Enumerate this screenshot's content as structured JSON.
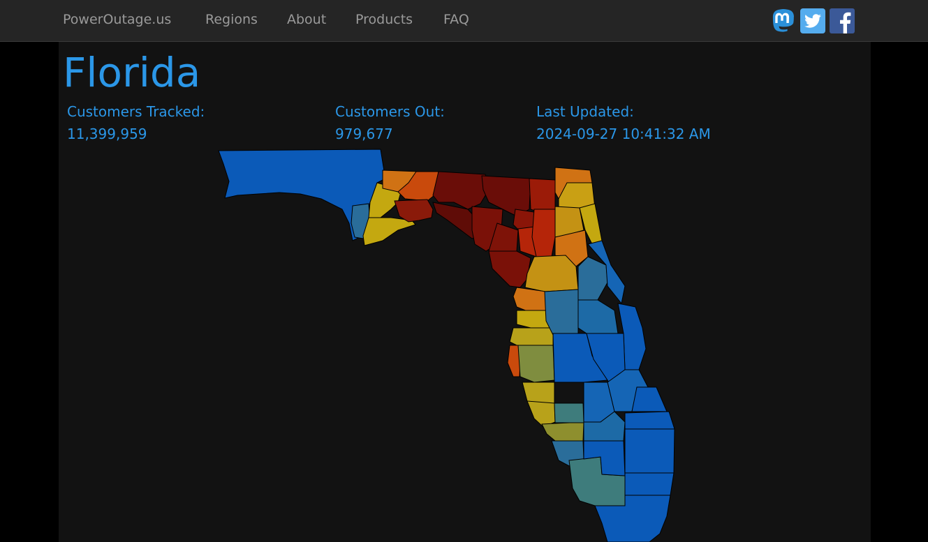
{
  "nav": {
    "brand": "PowerOutage.us",
    "links": [
      "Regions",
      "About",
      "Products",
      "FAQ"
    ]
  },
  "social": {
    "icons": [
      "mastodon-icon",
      "twitter-icon",
      "facebook-icon"
    ],
    "colors": {
      "mastodon": "#2b90d9",
      "twitter": "#55acee",
      "facebook": "#3b5998"
    }
  },
  "page": {
    "title": "Florida",
    "stats": {
      "tracked_label": "Customers Tracked:",
      "tracked_value": "11,399,959",
      "out_label": "Customers Out:",
      "out_value": "979,677",
      "updated_label": "Last Updated:",
      "updated_value": "2024-09-27 10:41:32 AM"
    }
  },
  "map": {
    "legend_colors": {
      "none": "#0b5ab8",
      "low": "#2a6d9a",
      "low_mid": "#3e7c7c",
      "mid": "#7f8d3f",
      "mid_high": "#b8a21a",
      "high": "#c4a810",
      "very_high": "#d07214",
      "severe": "#b52509",
      "extreme": "#6a0d08"
    }
  }
}
